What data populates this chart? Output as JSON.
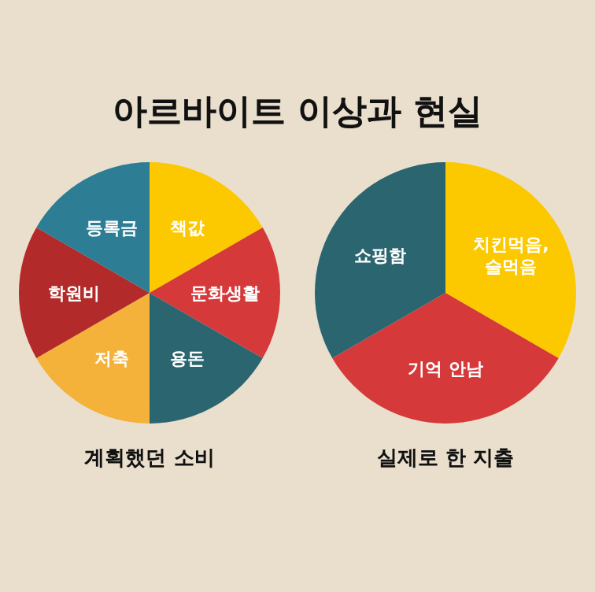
{
  "chart_data": [
    {
      "type": "pie",
      "title": "아르바이트 이상과 현실",
      "xlabel": "계획했던 소비",
      "categories": [
        "책값",
        "문화생활",
        "용돈",
        "저축",
        "학원비",
        "등록금"
      ],
      "values": [
        16.67,
        16.67,
        16.67,
        16.67,
        16.66,
        16.66
      ],
      "colors": [
        "#fcc800",
        "#d6393a",
        "#2b6670",
        "#f4b23b",
        "#b22a29",
        "#2d7d95"
      ]
    },
    {
      "type": "pie",
      "xlabel": "실제로 한 지출",
      "categories": [
        "치킨먹음, 술먹음",
        "기억 안남",
        "쇼핑함"
      ],
      "values": [
        33.34,
        33.33,
        33.33
      ],
      "colors": [
        "#fcc800",
        "#d6393a",
        "#2b6670"
      ]
    }
  ]
}
